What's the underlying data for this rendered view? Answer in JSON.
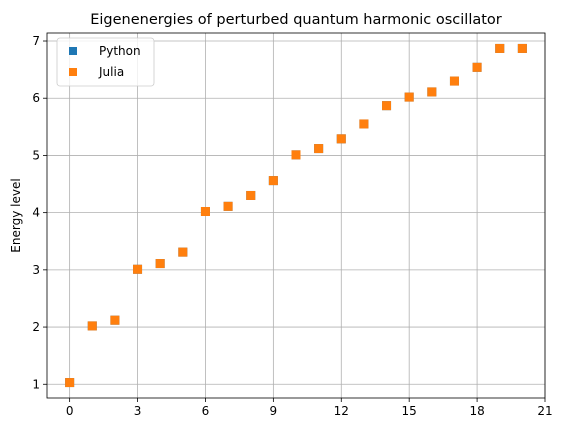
{
  "chart_data": {
    "type": "scatter",
    "title": "Eigenenergies of perturbed quantum harmonic oscillator",
    "xlabel": "",
    "ylabel": "Energy level",
    "xlim": [
      -1,
      21
    ],
    "ylim": [
      0.76,
      7.14
    ],
    "xticks": [
      0,
      3,
      6,
      9,
      12,
      15,
      18,
      21
    ],
    "yticks": [
      1,
      2,
      3,
      4,
      5,
      6,
      7
    ],
    "grid": true,
    "legend_position": "top-left",
    "marker": "square",
    "series": [
      {
        "name": "Python",
        "color": "#1f77b4",
        "x": [
          0,
          1,
          2,
          3,
          4,
          5,
          6,
          7,
          8,
          9,
          10,
          11,
          12,
          13,
          14,
          15,
          16,
          17,
          18,
          19,
          20
        ],
        "y": [
          1.03,
          2.02,
          2.12,
          3.01,
          3.11,
          3.31,
          4.02,
          4.11,
          4.3,
          4.56,
          5.01,
          5.12,
          5.29,
          5.55,
          5.87,
          6.02,
          6.11,
          6.3,
          6.54,
          6.87,
          6.87
        ]
      },
      {
        "name": "Julia",
        "color": "#ff7f0e",
        "x": [
          0,
          1,
          2,
          3,
          4,
          5,
          6,
          7,
          8,
          9,
          10,
          11,
          12,
          13,
          14,
          15,
          16,
          17,
          18,
          19,
          20
        ],
        "y": [
          1.03,
          2.02,
          2.12,
          3.01,
          3.11,
          3.31,
          4.02,
          4.11,
          4.3,
          4.56,
          5.01,
          5.12,
          5.29,
          5.55,
          5.87,
          6.02,
          6.11,
          6.3,
          6.54,
          6.87,
          6.87
        ]
      }
    ]
  }
}
